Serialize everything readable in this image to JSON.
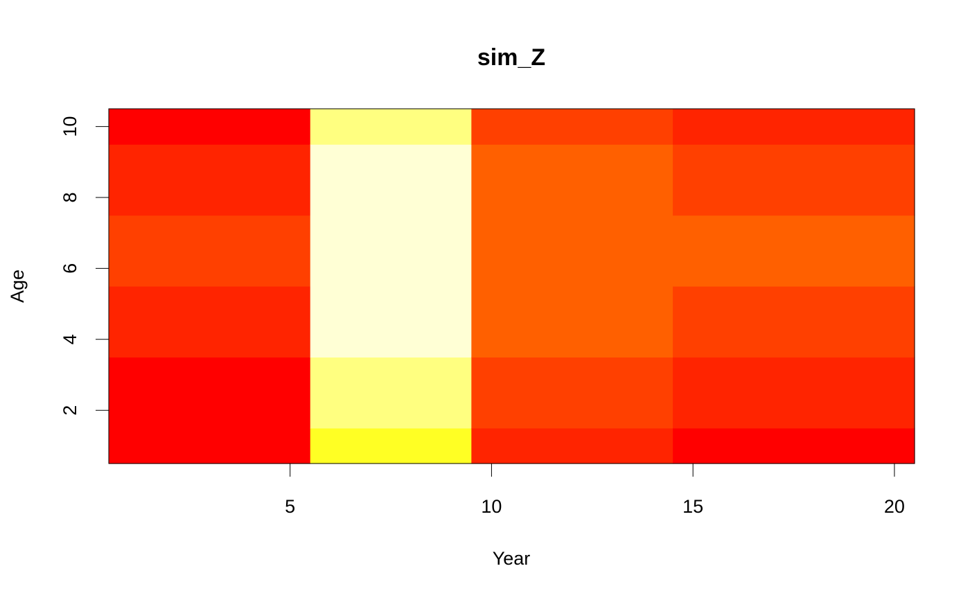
{
  "chart_data": {
    "type": "heatmap",
    "title": "sim_Z",
    "xlabel": "Year",
    "ylabel": "Age",
    "x_ticks": [
      5,
      10,
      15,
      20
    ],
    "y_ticks": [
      2,
      4,
      6,
      8,
      10
    ],
    "xlim": [
      0.5,
      20.5
    ],
    "ylim": [
      0.5,
      10.5
    ],
    "grid": false,
    "legend": "none",
    "color_scale": "heat (low = red, high = light yellow)",
    "blocks": [
      {
        "years": [
          1,
          5
        ],
        "ages": [
          1,
          3
        ],
        "level": 0.0,
        "color": "#FF0000"
      },
      {
        "years": [
          1,
          5
        ],
        "ages": [
          4,
          5
        ],
        "level": 0.12,
        "color": "#FF2400"
      },
      {
        "years": [
          1,
          5
        ],
        "ages": [
          6,
          7
        ],
        "level": 0.25,
        "color": "#FF4000"
      },
      {
        "years": [
          1,
          5
        ],
        "ages": [
          8,
          9
        ],
        "level": 0.12,
        "color": "#FF2400"
      },
      {
        "years": [
          1,
          5
        ],
        "ages": [
          10,
          10
        ],
        "level": 0.0,
        "color": "#FF0000"
      },
      {
        "years": [
          6,
          9
        ],
        "ages": [
          1,
          1
        ],
        "level": 0.7,
        "color": "#FFFF24"
      },
      {
        "years": [
          6,
          9
        ],
        "ages": [
          2,
          3
        ],
        "level": 0.85,
        "color": "#FFFF80"
      },
      {
        "years": [
          6,
          9
        ],
        "ages": [
          4,
          9
        ],
        "level": 1.0,
        "color": "#FFFFD5"
      },
      {
        "years": [
          6,
          9
        ],
        "ages": [
          10,
          10
        ],
        "level": 0.85,
        "color": "#FFFF80"
      },
      {
        "years": [
          10,
          14
        ],
        "ages": [
          1,
          1
        ],
        "level": 0.12,
        "color": "#FF2400"
      },
      {
        "years": [
          10,
          14
        ],
        "ages": [
          2,
          3
        ],
        "level": 0.25,
        "color": "#FF4000"
      },
      {
        "years": [
          10,
          14
        ],
        "ages": [
          4,
          9
        ],
        "level": 0.37,
        "color": "#FF6000"
      },
      {
        "years": [
          10,
          14
        ],
        "ages": [
          10,
          10
        ],
        "level": 0.25,
        "color": "#FF4000"
      },
      {
        "years": [
          15,
          20
        ],
        "ages": [
          1,
          1
        ],
        "level": 0.0,
        "color": "#FF0000"
      },
      {
        "years": [
          15,
          20
        ],
        "ages": [
          2,
          3
        ],
        "level": 0.12,
        "color": "#FF2400"
      },
      {
        "years": [
          15,
          20
        ],
        "ages": [
          4,
          5
        ],
        "level": 0.25,
        "color": "#FF4000"
      },
      {
        "years": [
          15,
          20
        ],
        "ages": [
          6,
          7
        ],
        "level": 0.37,
        "color": "#FF6000"
      },
      {
        "years": [
          15,
          20
        ],
        "ages": [
          8,
          9
        ],
        "level": 0.25,
        "color": "#FF4000"
      },
      {
        "years": [
          15,
          20
        ],
        "ages": [
          10,
          10
        ],
        "level": 0.12,
        "color": "#FF2400"
      }
    ]
  }
}
